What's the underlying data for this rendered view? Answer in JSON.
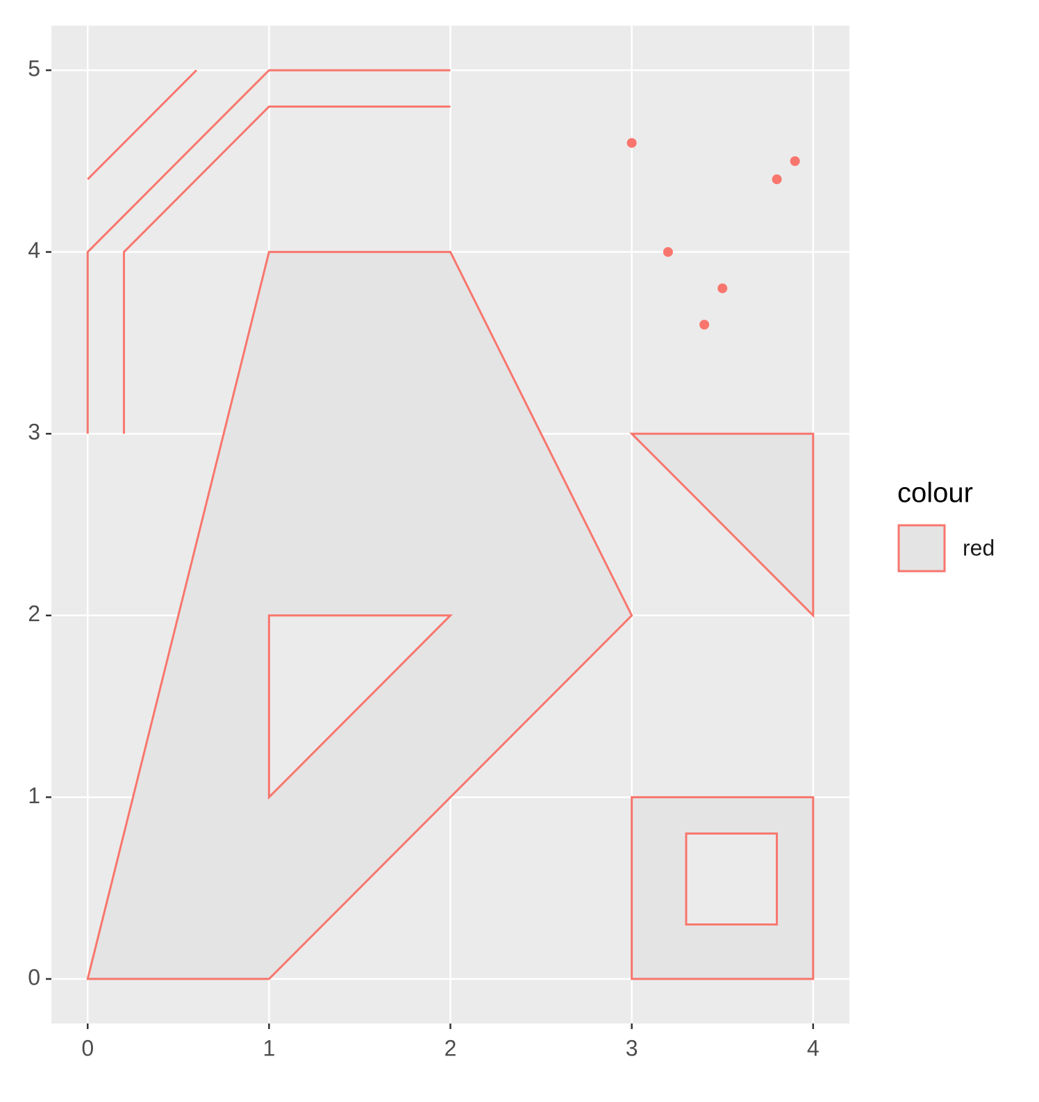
{
  "chart_data": {
    "type": "sf",
    "xlim": [
      -0.2,
      4.2
    ],
    "ylim": [
      -0.245,
      5.245
    ],
    "xticks": [
      0,
      1,
      2,
      3,
      4
    ],
    "yticks": [
      0,
      1,
      2,
      3,
      4,
      5
    ],
    "grid": true,
    "color": "#F8766D",
    "fill": "#E4E4E4",
    "legend_title": "colour",
    "legend_label": "red",
    "points": {
      "x": [
        3,
        3.2,
        3.4,
        3.5,
        3.8,
        3.9
      ],
      "y": [
        4.6,
        4,
        3.6,
        3.8,
        4.4,
        4.5
      ]
    },
    "lines": [
      {
        "x": [
          0,
          0.6
        ],
        "y": [
          4.4,
          5
        ]
      },
      {
        "x": [
          0,
          0,
          1,
          2
        ],
        "y": [
          3,
          4,
          5,
          5
        ]
      },
      {
        "x": [
          0.2,
          0.2,
          1,
          2
        ],
        "y": [
          3,
          4,
          4.8,
          4.8
        ]
      }
    ],
    "polygons": [
      {
        "rings": [
          {
            "x": [
              0,
              1,
              2,
              3,
              1
            ],
            "y": [
              0,
              4,
              4,
              2,
              0
            ]
          },
          {
            "x": [
              1,
              1,
              2
            ],
            "y": [
              1,
              2,
              2
            ]
          }
        ]
      },
      {
        "rings": [
          {
            "x": [
              3,
              4,
              4
            ],
            "y": [
              3,
              3,
              2
            ]
          }
        ]
      },
      {
        "rings": [
          {
            "x": [
              3,
              4,
              4,
              3
            ],
            "y": [
              0,
              0,
              1,
              1
            ]
          },
          {
            "x": [
              3.3,
              3.8,
              3.8,
              3.3
            ],
            "y": [
              0.3,
              0.3,
              0.8,
              0.8
            ]
          }
        ]
      }
    ]
  }
}
